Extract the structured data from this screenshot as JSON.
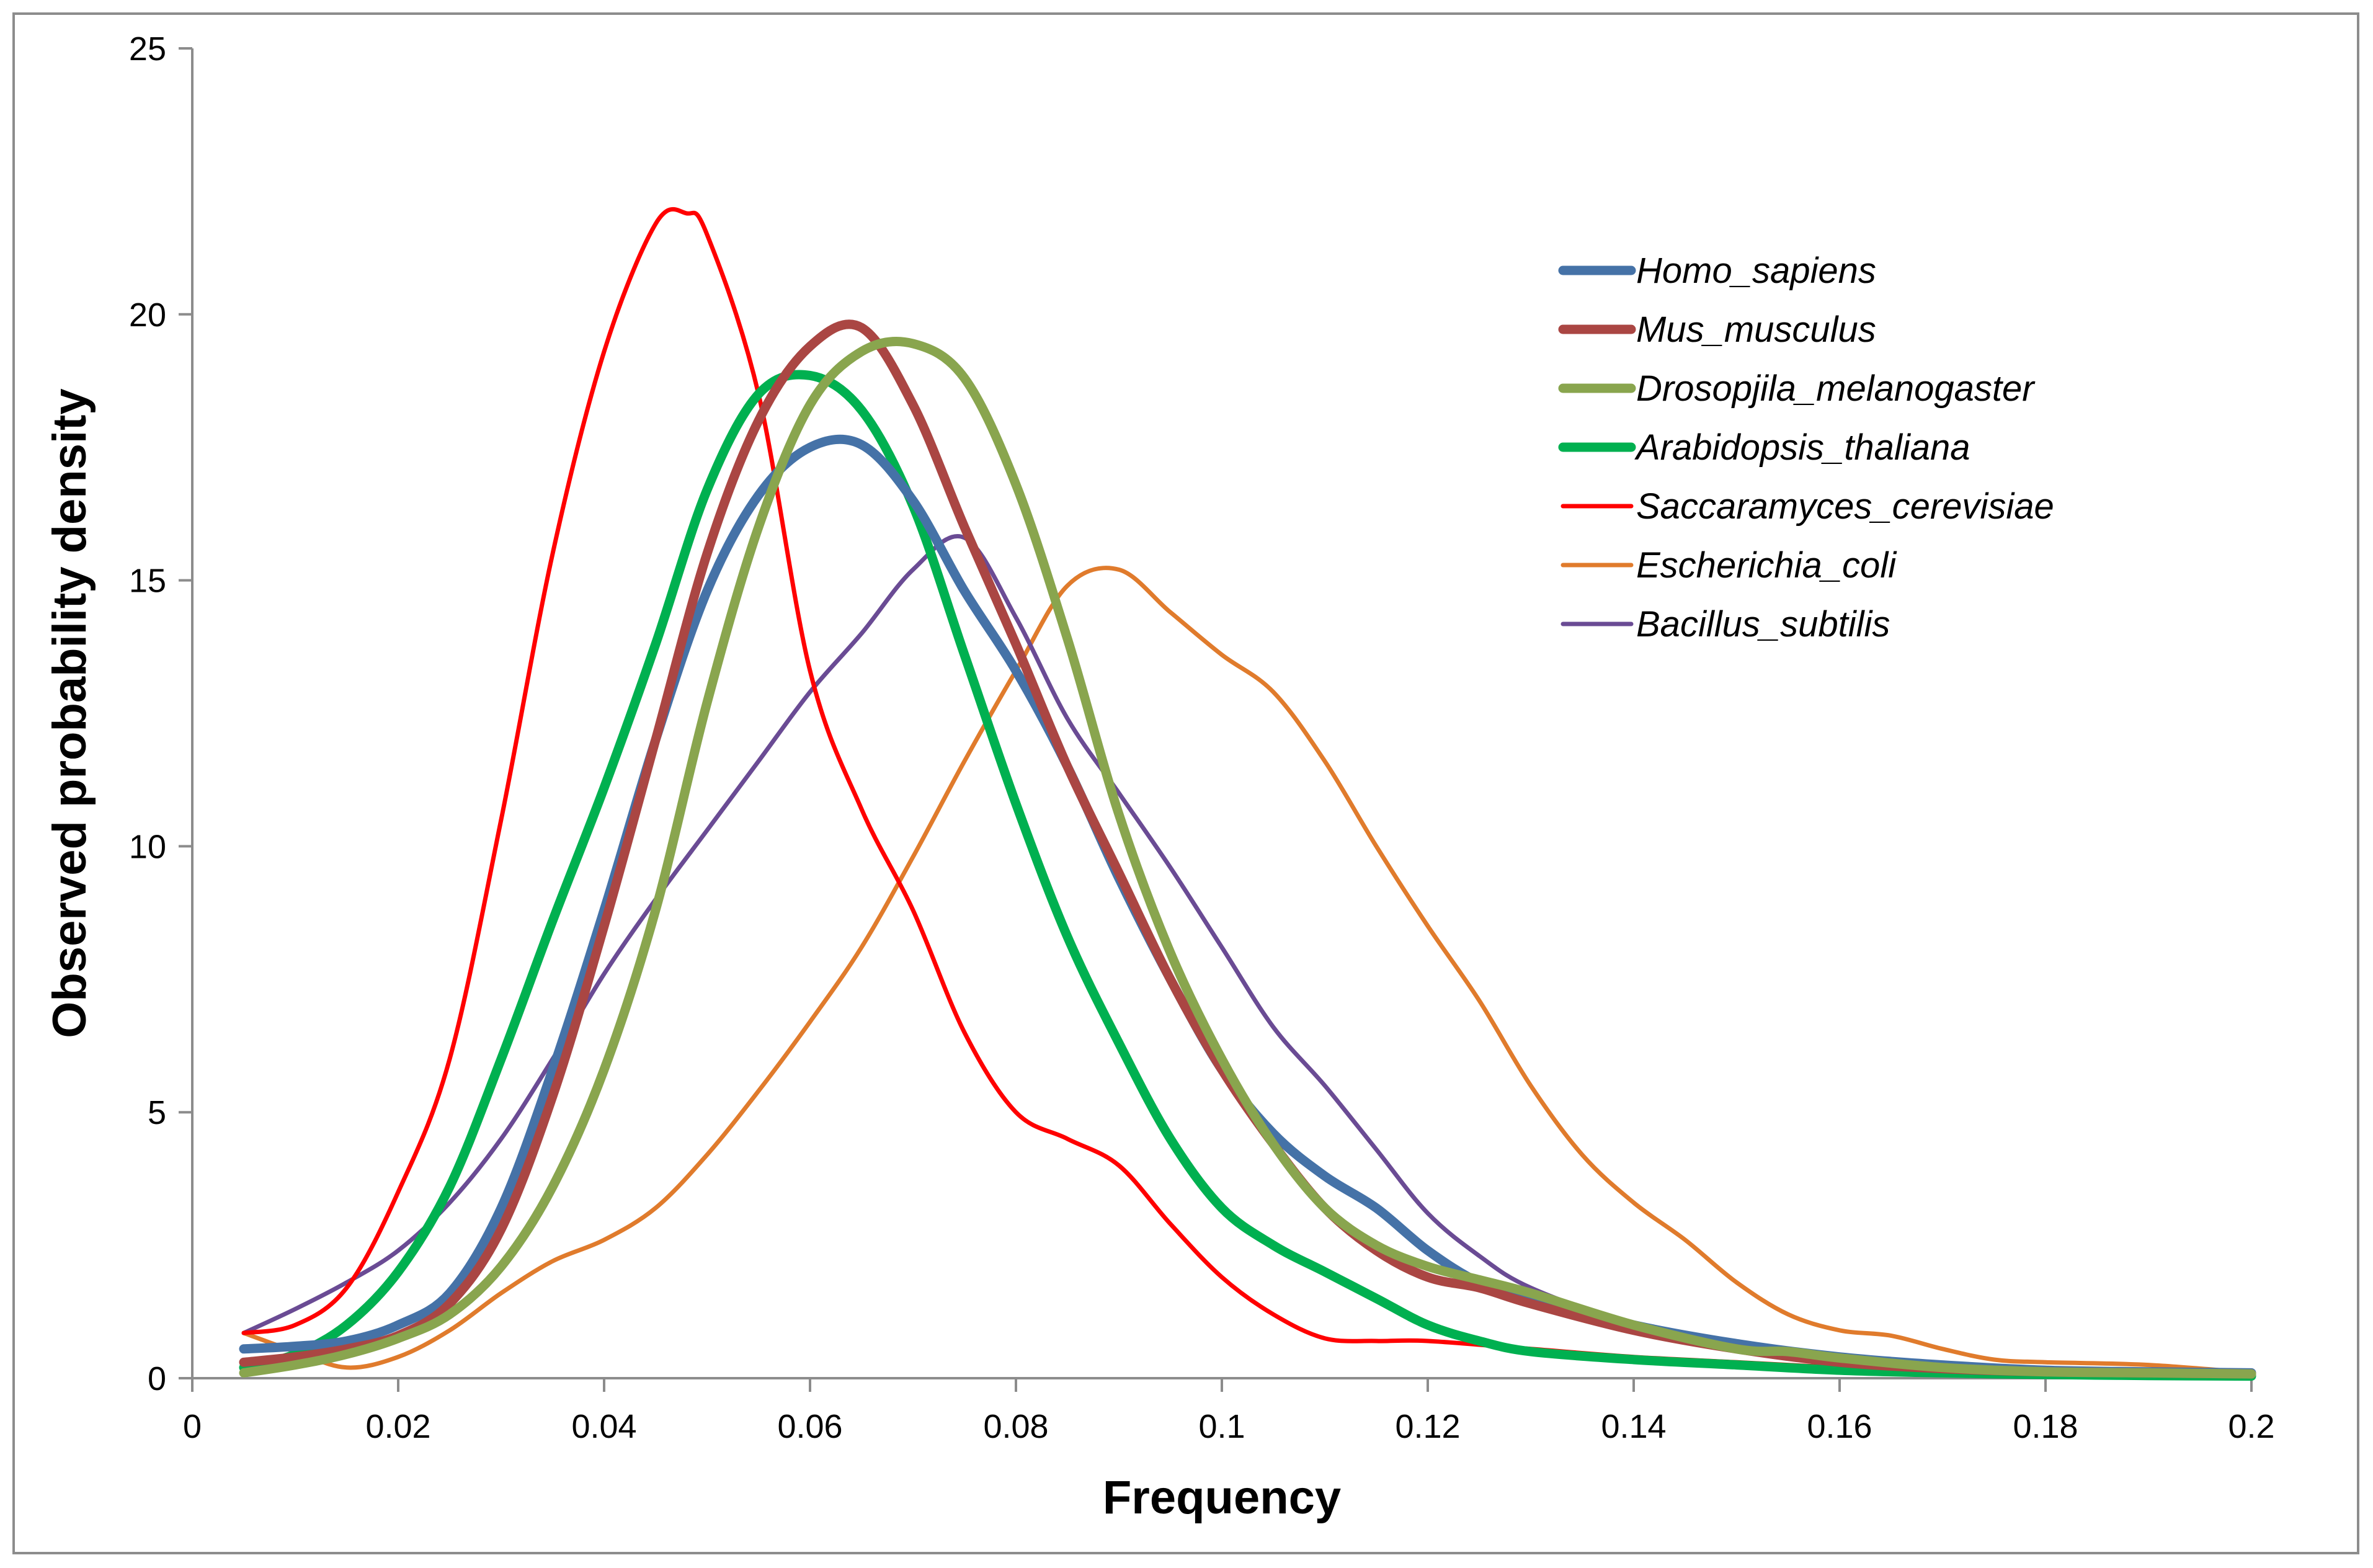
{
  "chart_data": {
    "type": "line",
    "title": "",
    "xlabel": "Frequency",
    "ylabel": "Observed probability density",
    "xlim": [
      0,
      0.2
    ],
    "ylim": [
      0,
      25
    ],
    "x_ticks": [
      0,
      0.02,
      0.04,
      0.06,
      0.08,
      0.1,
      0.12,
      0.14,
      0.16,
      0.18,
      0.2
    ],
    "y_ticks": [
      0,
      5,
      10,
      15,
      20,
      25
    ],
    "grid": false,
    "legend_position": "top-right",
    "series": [
      {
        "name": "Homo_sapiens",
        "color": "#4572A7",
        "weight": "thick",
        "points": [
          [
            0.005,
            0.55
          ],
          [
            0.01,
            0.6
          ],
          [
            0.015,
            0.7
          ],
          [
            0.02,
            1.0
          ],
          [
            0.025,
            1.6
          ],
          [
            0.03,
            3.2
          ],
          [
            0.035,
            5.8
          ],
          [
            0.04,
            8.8
          ],
          [
            0.045,
            12.0
          ],
          [
            0.05,
            14.8
          ],
          [
            0.055,
            16.6
          ],
          [
            0.06,
            17.5
          ],
          [
            0.065,
            17.55
          ],
          [
            0.07,
            16.5
          ],
          [
            0.075,
            14.8
          ],
          [
            0.08,
            13.3
          ],
          [
            0.085,
            11.5
          ],
          [
            0.09,
            9.4
          ],
          [
            0.095,
            7.5
          ],
          [
            0.1,
            5.8
          ],
          [
            0.105,
            4.6
          ],
          [
            0.11,
            3.8
          ],
          [
            0.115,
            3.2
          ],
          [
            0.12,
            2.4
          ],
          [
            0.125,
            1.8
          ],
          [
            0.13,
            1.5
          ],
          [
            0.14,
            1.0
          ],
          [
            0.15,
            0.65
          ],
          [
            0.16,
            0.4
          ],
          [
            0.17,
            0.25
          ],
          [
            0.18,
            0.15
          ],
          [
            0.19,
            0.12
          ],
          [
            0.2,
            0.1
          ]
        ]
      },
      {
        "name": "Mus_musculus",
        "color": "#AA4643",
        "weight": "thick",
        "points": [
          [
            0.005,
            0.3
          ],
          [
            0.01,
            0.4
          ],
          [
            0.015,
            0.55
          ],
          [
            0.02,
            0.8
          ],
          [
            0.025,
            1.4
          ],
          [
            0.03,
            2.8
          ],
          [
            0.035,
            5.3
          ],
          [
            0.04,
            8.5
          ],
          [
            0.045,
            12.0
          ],
          [
            0.05,
            15.5
          ],
          [
            0.055,
            18.0
          ],
          [
            0.06,
            19.4
          ],
          [
            0.065,
            19.75
          ],
          [
            0.07,
            18.3
          ],
          [
            0.075,
            16.0
          ],
          [
            0.08,
            13.8
          ],
          [
            0.085,
            11.5
          ],
          [
            0.09,
            9.5
          ],
          [
            0.095,
            7.5
          ],
          [
            0.1,
            5.8
          ],
          [
            0.105,
            4.4
          ],
          [
            0.11,
            3.2
          ],
          [
            0.115,
            2.4
          ],
          [
            0.12,
            1.9
          ],
          [
            0.125,
            1.7
          ],
          [
            0.13,
            1.4
          ],
          [
            0.14,
            0.9
          ],
          [
            0.15,
            0.55
          ],
          [
            0.16,
            0.3
          ],
          [
            0.17,
            0.18
          ],
          [
            0.18,
            0.12
          ],
          [
            0.19,
            0.1
          ],
          [
            0.2,
            0.08
          ]
        ]
      },
      {
        "name": "Drosopjila_melanogaster",
        "color": "#89A54E",
        "weight": "thick",
        "points": [
          [
            0.005,
            0.1
          ],
          [
            0.01,
            0.25
          ],
          [
            0.015,
            0.45
          ],
          [
            0.02,
            0.75
          ],
          [
            0.025,
            1.2
          ],
          [
            0.03,
            2.1
          ],
          [
            0.035,
            3.6
          ],
          [
            0.04,
            5.8
          ],
          [
            0.045,
            8.8
          ],
          [
            0.05,
            12.7
          ],
          [
            0.055,
            16.0
          ],
          [
            0.06,
            18.3
          ],
          [
            0.065,
            19.3
          ],
          [
            0.07,
            19.45
          ],
          [
            0.075,
            18.8
          ],
          [
            0.08,
            16.8
          ],
          [
            0.085,
            13.9
          ],
          [
            0.09,
            10.6
          ],
          [
            0.095,
            8.0
          ],
          [
            0.1,
            6.0
          ],
          [
            0.105,
            4.4
          ],
          [
            0.11,
            3.2
          ],
          [
            0.115,
            2.5
          ],
          [
            0.12,
            2.1
          ],
          [
            0.125,
            1.85
          ],
          [
            0.13,
            1.6
          ],
          [
            0.14,
            1.0
          ],
          [
            0.15,
            0.55
          ],
          [
            0.155,
            0.5
          ],
          [
            0.16,
            0.38
          ],
          [
            0.17,
            0.2
          ],
          [
            0.18,
            0.12
          ],
          [
            0.19,
            0.1
          ],
          [
            0.2,
            0.08
          ]
        ]
      },
      {
        "name": "Arabidopsis_thaliana",
        "color": "#00B050",
        "weight": "thick",
        "points": [
          [
            0.005,
            0.2
          ],
          [
            0.01,
            0.45
          ],
          [
            0.015,
            1.0
          ],
          [
            0.02,
            2.0
          ],
          [
            0.025,
            3.6
          ],
          [
            0.03,
            6.0
          ],
          [
            0.035,
            8.6
          ],
          [
            0.04,
            11.1
          ],
          [
            0.045,
            13.8
          ],
          [
            0.05,
            16.7
          ],
          [
            0.055,
            18.5
          ],
          [
            0.06,
            18.85
          ],
          [
            0.065,
            18.2
          ],
          [
            0.07,
            16.4
          ],
          [
            0.075,
            13.6
          ],
          [
            0.08,
            10.8
          ],
          [
            0.085,
            8.3
          ],
          [
            0.09,
            6.3
          ],
          [
            0.095,
            4.5
          ],
          [
            0.1,
            3.2
          ],
          [
            0.105,
            2.5
          ],
          [
            0.11,
            2.0
          ],
          [
            0.115,
            1.5
          ],
          [
            0.12,
            1.0
          ],
          [
            0.125,
            0.7
          ],
          [
            0.13,
            0.5
          ],
          [
            0.14,
            0.35
          ],
          [
            0.15,
            0.25
          ],
          [
            0.16,
            0.15
          ],
          [
            0.17,
            0.1
          ],
          [
            0.18,
            0.07
          ],
          [
            0.19,
            0.05
          ],
          [
            0.2,
            0.04
          ]
        ]
      },
      {
        "name": "Saccaramyces_cerevisiae",
        "color": "#FF0000",
        "weight": "thin",
        "points": [
          [
            0.005,
            0.85
          ],
          [
            0.01,
            1.0
          ],
          [
            0.015,
            1.7
          ],
          [
            0.02,
            3.5
          ],
          [
            0.025,
            6.0
          ],
          [
            0.03,
            10.5
          ],
          [
            0.035,
            15.5
          ],
          [
            0.04,
            19.3
          ],
          [
            0.045,
            21.7
          ],
          [
            0.048,
            21.9
          ],
          [
            0.05,
            21.5
          ],
          [
            0.055,
            18.5
          ],
          [
            0.06,
            13.3
          ],
          [
            0.065,
            10.7
          ],
          [
            0.07,
            8.8
          ],
          [
            0.075,
            6.5
          ],
          [
            0.08,
            5.0
          ],
          [
            0.085,
            4.5
          ],
          [
            0.09,
            4.0
          ],
          [
            0.095,
            2.9
          ],
          [
            0.1,
            1.9
          ],
          [
            0.105,
            1.2
          ],
          [
            0.11,
            0.75
          ],
          [
            0.115,
            0.7
          ],
          [
            0.12,
            0.7
          ],
          [
            0.13,
            0.55
          ],
          [
            0.14,
            0.4
          ],
          [
            0.15,
            0.3
          ],
          [
            0.16,
            0.2
          ],
          [
            0.17,
            0.12
          ],
          [
            0.18,
            0.1
          ],
          [
            0.19,
            0.08
          ],
          [
            0.2,
            0.06
          ]
        ]
      },
      {
        "name": "Escherichia_coli",
        "color": "#E07B2C",
        "weight": "thin",
        "points": [
          [
            0.005,
            0.85
          ],
          [
            0.01,
            0.5
          ],
          [
            0.015,
            0.2
          ],
          [
            0.02,
            0.4
          ],
          [
            0.025,
            0.9
          ],
          [
            0.03,
            1.6
          ],
          [
            0.035,
            2.2
          ],
          [
            0.04,
            2.6
          ],
          [
            0.045,
            3.2
          ],
          [
            0.05,
            4.2
          ],
          [
            0.055,
            5.4
          ],
          [
            0.06,
            6.7
          ],
          [
            0.065,
            8.1
          ],
          [
            0.07,
            9.8
          ],
          [
            0.075,
            11.6
          ],
          [
            0.08,
            13.3
          ],
          [
            0.085,
            14.9
          ],
          [
            0.09,
            15.2
          ],
          [
            0.095,
            14.4
          ],
          [
            0.1,
            13.6
          ],
          [
            0.105,
            12.9
          ],
          [
            0.11,
            11.6
          ],
          [
            0.115,
            10.0
          ],
          [
            0.12,
            8.5
          ],
          [
            0.125,
            7.1
          ],
          [
            0.13,
            5.5
          ],
          [
            0.135,
            4.2
          ],
          [
            0.14,
            3.3
          ],
          [
            0.145,
            2.6
          ],
          [
            0.15,
            1.8
          ],
          [
            0.155,
            1.2
          ],
          [
            0.16,
            0.9
          ],
          [
            0.165,
            0.8
          ],
          [
            0.17,
            0.55
          ],
          [
            0.175,
            0.35
          ],
          [
            0.18,
            0.3
          ],
          [
            0.19,
            0.25
          ],
          [
            0.2,
            0.1
          ]
        ]
      },
      {
        "name": "Bacillus_subtilis",
        "color": "#6A4B94",
        "weight": "thin",
        "points": [
          [
            0.005,
            0.85
          ],
          [
            0.01,
            1.3
          ],
          [
            0.015,
            1.8
          ],
          [
            0.02,
            2.4
          ],
          [
            0.025,
            3.3
          ],
          [
            0.03,
            4.5
          ],
          [
            0.035,
            6.0
          ],
          [
            0.04,
            7.6
          ],
          [
            0.045,
            9.0
          ],
          [
            0.05,
            10.3
          ],
          [
            0.055,
            11.6
          ],
          [
            0.06,
            12.9
          ],
          [
            0.065,
            14.0
          ],
          [
            0.07,
            15.2
          ],
          [
            0.075,
            15.8
          ],
          [
            0.08,
            14.3
          ],
          [
            0.085,
            12.4
          ],
          [
            0.09,
            11.0
          ],
          [
            0.095,
            9.6
          ],
          [
            0.1,
            8.1
          ],
          [
            0.105,
            6.6
          ],
          [
            0.11,
            5.5
          ],
          [
            0.115,
            4.3
          ],
          [
            0.12,
            3.1
          ],
          [
            0.125,
            2.3
          ],
          [
            0.13,
            1.7
          ],
          [
            0.14,
            1.0
          ],
          [
            0.15,
            0.55
          ],
          [
            0.16,
            0.3
          ],
          [
            0.17,
            0.18
          ],
          [
            0.18,
            0.12
          ],
          [
            0.19,
            0.1
          ],
          [
            0.2,
            0.08
          ]
        ]
      }
    ]
  }
}
